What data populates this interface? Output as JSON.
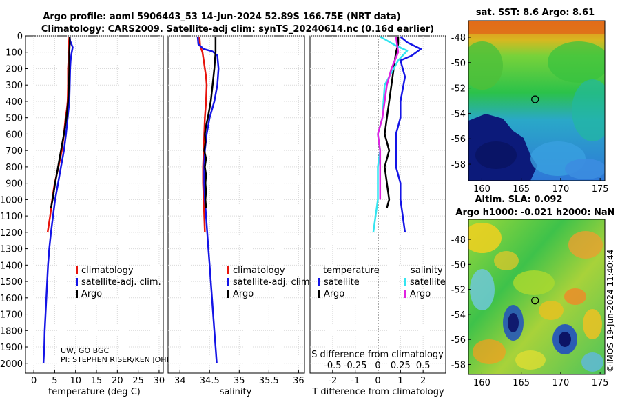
{
  "header": {
    "line1": "Argo profile: aoml 5906443_53 14-Jun-2024 52.89S 166.75E (NRT data)",
    "line2": "Climatology: CARS2009. Satellite-adj clim: synTS_20240614.nc (0.16d earlier)"
  },
  "credits": {
    "line1": "UW, GO BGC",
    "line2": "PI: STEPHEN RISER/KEN JOHN"
  },
  "imos_stamp": "©IMOS 19-Jun-2024 11:40:44",
  "colors": {
    "climatology": "#e8140c",
    "satellite": "#1414e6",
    "argo": "#000000",
    "sat_salinity": "#33e5f0",
    "argo_salinity": "#e022e0"
  },
  "chart_data": [
    {
      "type": "line",
      "id": "temperature",
      "xlabel": "temperature (deg C)",
      "ylabel": "",
      "xlim": [
        -2,
        31
      ],
      "ylim": [
        0,
        2060
      ],
      "y_inverted": true,
      "xticks": [
        0,
        5,
        10,
        15,
        20,
        25,
        30
      ],
      "yticks": [
        0,
        100,
        200,
        300,
        400,
        500,
        600,
        700,
        800,
        900,
        1000,
        1100,
        1200,
        1300,
        1400,
        1500,
        1600,
        1700,
        1800,
        1900,
        2000
      ],
      "grid": true,
      "legend": {
        "position": "lower-right",
        "entries": [
          "climatology",
          "satellite-adj. clim.",
          "Argo"
        ]
      },
      "series": [
        {
          "name": "climatology",
          "color": "#e8140c",
          "points": [
            [
              8.5,
              5
            ],
            [
              8.4,
              50
            ],
            [
              8.3,
              100
            ],
            [
              8.3,
              150
            ],
            [
              8.2,
              200
            ],
            [
              8.2,
              300
            ],
            [
              8.1,
              400
            ],
            [
              7.9,
              450
            ],
            [
              7.6,
              500
            ],
            [
              7.2,
              600
            ],
            [
              6.7,
              700
            ],
            [
              5.9,
              800
            ],
            [
              5.0,
              900
            ],
            [
              4.4,
              1000
            ],
            [
              3.9,
              1100
            ],
            [
              3.3,
              1200
            ]
          ]
        },
        {
          "name": "satellite-adj. clim.",
          "color": "#1414e6",
          "points": [
            [
              8.6,
              5
            ],
            [
              8.7,
              30
            ],
            [
              9.3,
              70
            ],
            [
              9.0,
              110
            ],
            [
              8.8,
              150
            ],
            [
              8.7,
              200
            ],
            [
              8.6,
              300
            ],
            [
              8.5,
              400
            ],
            [
              8.1,
              500
            ],
            [
              7.7,
              600
            ],
            [
              7.2,
              700
            ],
            [
              6.5,
              800
            ],
            [
              5.8,
              900
            ],
            [
              5.1,
              1000
            ],
            [
              4.6,
              1100
            ],
            [
              4.1,
              1200
            ],
            [
              3.7,
              1300
            ],
            [
              3.4,
              1400
            ],
            [
              3.2,
              1500
            ],
            [
              3.0,
              1600
            ],
            [
              2.8,
              1700
            ],
            [
              2.6,
              1800
            ],
            [
              2.5,
              1900
            ],
            [
              2.3,
              2000
            ]
          ]
        },
        {
          "name": "Argo",
          "color": "#000000",
          "points": [
            [
              8.6,
              5
            ],
            [
              8.6,
              50
            ],
            [
              8.5,
              100
            ],
            [
              8.5,
              200
            ],
            [
              8.4,
              300
            ],
            [
              8.2,
              400
            ],
            [
              7.8,
              500
            ],
            [
              7.2,
              600
            ],
            [
              6.5,
              700
            ],
            [
              5.8,
              800
            ],
            [
              5.1,
              900
            ],
            [
              4.5,
              1000
            ],
            [
              4.1,
              1050
            ]
          ]
        }
      ]
    },
    {
      "type": "line",
      "id": "salinity",
      "xlabel": "salinity",
      "ylabel": "",
      "xlim": [
        33.8,
        36.1
      ],
      "ylim": [
        0,
        2060
      ],
      "y_inverted": true,
      "xticks": [
        34,
        34.5,
        35,
        35.5,
        36
      ],
      "grid": true,
      "legend": {
        "position": "lower-right",
        "entries": [
          "climatology",
          "satellite-adj. clim.",
          "Argo"
        ]
      },
      "series": [
        {
          "name": "climatology",
          "color": "#e8140c",
          "points": [
            [
              34.33,
              5
            ],
            [
              34.34,
              60
            ],
            [
              34.38,
              100
            ],
            [
              34.4,
              150
            ],
            [
              34.42,
              200
            ],
            [
              34.44,
              250
            ],
            [
              34.45,
              300
            ],
            [
              34.44,
              400
            ],
            [
              34.42,
              500
            ],
            [
              34.41,
              600
            ],
            [
              34.4,
              700
            ],
            [
              34.39,
              800
            ],
            [
              34.39,
              900
            ],
            [
              34.4,
              1000
            ],
            [
              34.41,
              1100
            ],
            [
              34.42,
              1200
            ]
          ]
        },
        {
          "name": "satellite-adj. clim.",
          "color": "#1414e6",
          "points": [
            [
              34.3,
              5
            ],
            [
              34.31,
              50
            ],
            [
              34.4,
              80
            ],
            [
              34.55,
              95
            ],
            [
              34.63,
              120
            ],
            [
              34.65,
              200
            ],
            [
              34.63,
              300
            ],
            [
              34.58,
              400
            ],
            [
              34.5,
              500
            ],
            [
              34.45,
              600
            ],
            [
              34.42,
              700
            ],
            [
              34.41,
              800
            ],
            [
              34.41,
              900
            ],
            [
              34.42,
              1000
            ],
            [
              34.44,
              1100
            ],
            [
              34.46,
              1200
            ],
            [
              34.48,
              1300
            ],
            [
              34.5,
              1400
            ],
            [
              34.52,
              1500
            ],
            [
              34.54,
              1600
            ],
            [
              34.56,
              1700
            ],
            [
              34.58,
              1800
            ],
            [
              34.6,
              1900
            ],
            [
              34.62,
              2000
            ]
          ]
        },
        {
          "name": "Argo",
          "color": "#000000",
          "points": [
            [
              34.6,
              5
            ],
            [
              34.6,
              100
            ],
            [
              34.58,
              200
            ],
            [
              34.55,
              300
            ],
            [
              34.52,
              400
            ],
            [
              34.47,
              500
            ],
            [
              34.44,
              550
            ],
            [
              34.42,
              600
            ],
            [
              34.43,
              650
            ],
            [
              34.41,
              700
            ],
            [
              34.44,
              750
            ],
            [
              34.42,
              800
            ],
            [
              34.44,
              850
            ],
            [
              34.43,
              900
            ],
            [
              34.44,
              950
            ],
            [
              34.43,
              1000
            ],
            [
              34.44,
              1050
            ]
          ]
        }
      ]
    },
    {
      "type": "line",
      "id": "difference",
      "title": "S difference from climatology",
      "xlabel": "T difference from climatology",
      "xlim": [
        -3,
        3
      ],
      "ylim": [
        0,
        2060
      ],
      "y_inverted": true,
      "xticks": [
        -2,
        -1,
        0,
        1,
        2
      ],
      "secondary_xticks": [
        -0.5,
        -0.25,
        0,
        0.25,
        0.5
      ],
      "grid": true,
      "legend": {
        "position": "lower",
        "groups": [
          {
            "title": "temperature",
            "entries": [
              "satellite",
              "Argo"
            ]
          },
          {
            "title": "salinity",
            "entries": [
              "satellite",
              "Argo"
            ]
          }
        ]
      },
      "series": [
        {
          "name": "temperature satellite",
          "color": "#1414e6",
          "points": [
            [
              1.0,
              5
            ],
            [
              1.3,
              40
            ],
            [
              1.9,
              80
            ],
            [
              1.5,
              120
            ],
            [
              1.0,
              150
            ],
            [
              1.2,
              250
            ],
            [
              1.0,
              400
            ],
            [
              1.0,
              500
            ],
            [
              0.8,
              600
            ],
            [
              0.8,
              700
            ],
            [
              0.8,
              800
            ],
            [
              1.0,
              900
            ],
            [
              1.0,
              1000
            ],
            [
              1.1,
              1100
            ],
            [
              1.2,
              1200
            ]
          ]
        },
        {
          "name": "temperature Argo",
          "color": "#000000",
          "points": [
            [
              0.9,
              5
            ],
            [
              0.9,
              50
            ],
            [
              0.8,
              100
            ],
            [
              0.7,
              200
            ],
            [
              0.6,
              300
            ],
            [
              0.5,
              400
            ],
            [
              0.4,
              500
            ],
            [
              0.3,
              600
            ],
            [
              0.5,
              700
            ],
            [
              0.3,
              800
            ],
            [
              0.4,
              900
            ],
            [
              0.5,
              1000
            ],
            [
              0.4,
              1050
            ]
          ]
        },
        {
          "name": "salinity satellite",
          "color": "#33e5f0",
          "points": [
            [
              0.1,
              5
            ],
            [
              0.8,
              60
            ],
            [
              1.3,
              90
            ],
            [
              0.9,
              150
            ],
            [
              0.3,
              300
            ],
            [
              0.2,
              500
            ],
            [
              0.0,
              600
            ],
            [
              0.1,
              700
            ],
            [
              0.0,
              800
            ],
            [
              0.0,
              900
            ],
            [
              0.0,
              1000
            ],
            [
              -0.1,
              1100
            ],
            [
              -0.2,
              1200
            ]
          ]
        },
        {
          "name": "salinity Argo",
          "color": "#e022e0",
          "points": [
            [
              0.8,
              5
            ],
            [
              0.9,
              100
            ],
            [
              0.6,
              200
            ],
            [
              0.4,
              300
            ],
            [
              0.3,
              400
            ],
            [
              0.2,
              500
            ],
            [
              0.0,
              600
            ],
            [
              0.1,
              700
            ],
            [
              0.1,
              800
            ],
            [
              0.1,
              900
            ],
            [
              0.1,
              1000
            ]
          ]
        }
      ]
    }
  ],
  "maps": [
    {
      "id": "sst",
      "title": "sat. SST: 8.6 Argo: 8.61",
      "xticks": [
        160,
        165,
        170,
        175
      ],
      "yticks": [
        -48,
        -50,
        -52,
        -54,
        -56,
        -58
      ],
      "xlim": [
        158.3,
        175.6
      ],
      "ylim": [
        -59.3,
        -46.7
      ],
      "marker": [
        166.75,
        -52.89
      ]
    },
    {
      "id": "sla",
      "title_line1": "Altim. SLA: 0.092",
      "title_line2": "Argo h1000: -0.021 h2000: NaN",
      "xticks": [
        160,
        165,
        170,
        175
      ],
      "yticks": [
        -48,
        -50,
        -52,
        -54,
        -56,
        -58
      ],
      "xlim": [
        158.3,
        175.6
      ],
      "ylim": [
        -58.8,
        -46.4
      ],
      "marker": [
        166.75,
        -52.89
      ]
    }
  ]
}
